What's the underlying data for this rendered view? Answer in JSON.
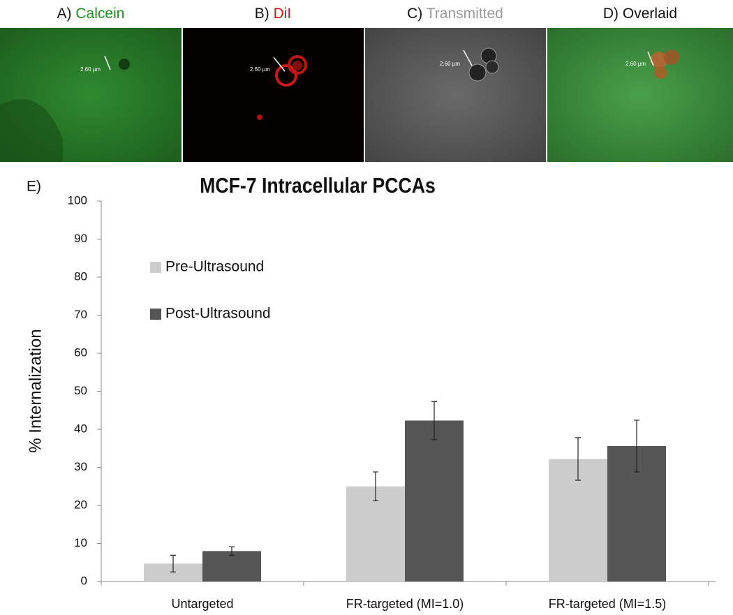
{
  "panels": [
    {
      "letter": "A)",
      "name": "Calcein",
      "color": "#1e8c1e",
      "scale": "2.60 µm"
    },
    {
      "letter": "B)",
      "name": "DiI",
      "color": "#e01010",
      "scale": "2.60 µm"
    },
    {
      "letter": "C)",
      "name": "Transmitted",
      "color": "#999999",
      "scale": "2.60 µm"
    },
    {
      "letter": "D)",
      "name": "Overlaid",
      "color": "#111111",
      "scale": "2.60 µm"
    }
  ],
  "chart_data": {
    "type": "bar",
    "panel_label": "E)",
    "title": "MCF-7 Intracellular PCCAs",
    "y_label": "% Internalization",
    "categories": [
      "Untargeted",
      "FR-targeted (MI=1.0)",
      "FR-targeted (MI=1.5)"
    ],
    "series": [
      {
        "name": "Pre-Ultrasound",
        "color": "#cccccc",
        "values": [
          4.7,
          25,
          32.2
        ],
        "errors": [
          2.2,
          3.8,
          5.6
        ]
      },
      {
        "name": "Post-Ultrasound",
        "color": "#555555",
        "values": [
          8,
          42.3,
          35.6
        ],
        "errors": [
          1.1,
          5,
          6.8
        ]
      }
    ],
    "ylim": [
      0,
      100
    ],
    "yticks": [
      0,
      10,
      20,
      30,
      40,
      50,
      60,
      70,
      80,
      90,
      100
    ],
    "grid": false,
    "legend": "upper-left"
  }
}
